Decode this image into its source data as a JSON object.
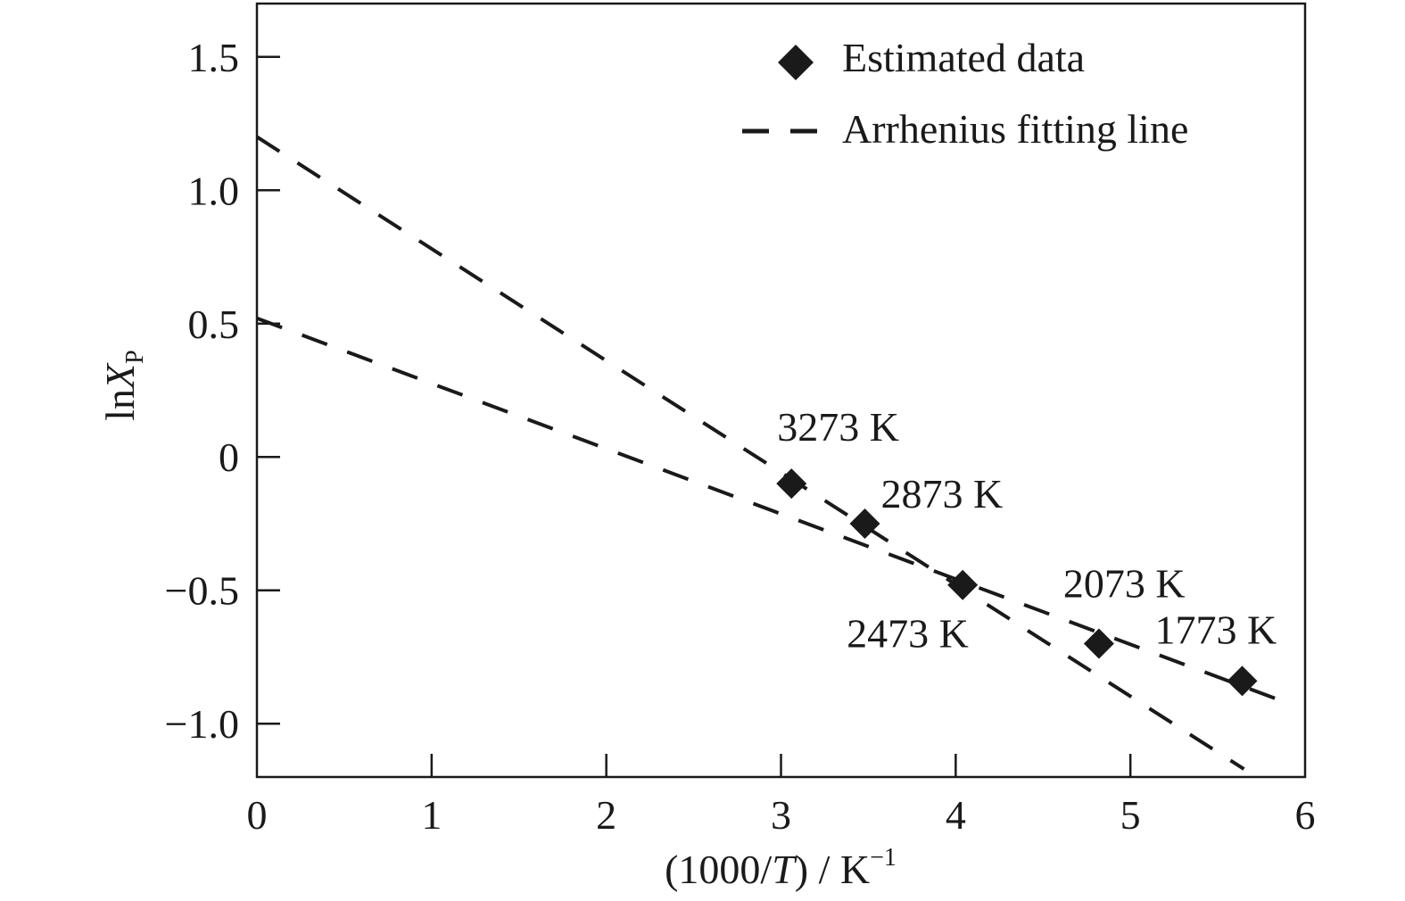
{
  "chart_data": {
    "type": "scatter",
    "title": "",
    "xlabel_parts": {
      "pre": "(1000/",
      "italic": "T",
      "post": ") / K",
      "sup": "−1"
    },
    "ylabel_parts": {
      "pre": "ln",
      "italic": "X",
      "sub": "P"
    },
    "xlim": [
      0,
      6
    ],
    "ylim": [
      -1.2,
      1.7
    ],
    "x_ticks": [
      {
        "value": 0,
        "label": "0"
      },
      {
        "value": 1,
        "label": "1"
      },
      {
        "value": 2,
        "label": "2"
      },
      {
        "value": 3,
        "label": "3"
      },
      {
        "value": 4,
        "label": "4"
      },
      {
        "value": 5,
        "label": "5"
      },
      {
        "value": 6,
        "label": "6"
      }
    ],
    "y_ticks": [
      {
        "value": 1.5,
        "label": "1.5"
      },
      {
        "value": 1.0,
        "label": "1.0"
      },
      {
        "value": 0.5,
        "label": "0.5"
      },
      {
        "value": 0,
        "label": "0"
      },
      {
        "value": -0.5,
        "label": "−0.5"
      },
      {
        "value": -1.0,
        "label": "−1.0"
      }
    ],
    "grid": false,
    "legend_position": "top-right",
    "legend": [
      {
        "label": "Estimated data",
        "marker": "diamond"
      },
      {
        "label": "Arrhenius fitting line",
        "marker": "dashed-line"
      }
    ],
    "points": [
      {
        "label": "3273 K",
        "x": 3.06,
        "y": -0.1
      },
      {
        "label": "2873 K",
        "x": 3.48,
        "y": -0.25
      },
      {
        "label": "2473 K",
        "x": 4.04,
        "y": -0.48
      },
      {
        "label": "2073 K",
        "x": 4.82,
        "y": -0.7
      },
      {
        "label": "1773 K",
        "x": 5.64,
        "y": -0.84
      }
    ],
    "fit_lines": [
      {
        "x": [
          0,
          5.65
        ],
        "y": [
          1.2,
          -1.17
        ]
      },
      {
        "x": [
          0,
          5.93
        ],
        "y": [
          0.52,
          -0.93
        ]
      }
    ],
    "colors": {
      "ink": "#1a1a1a",
      "background": "#ffffff"
    }
  }
}
